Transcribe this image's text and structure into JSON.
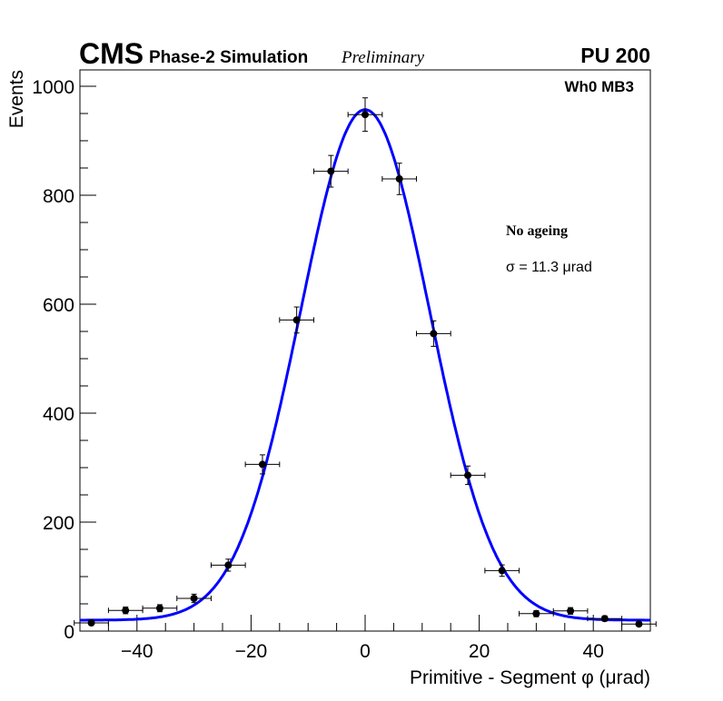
{
  "header": {
    "experiment": "CMS",
    "subtitle": "Phase-2 Simulation",
    "status": "Preliminary",
    "pileup": "PU 200"
  },
  "chart_data": {
    "type": "scatter",
    "title": "Wh0 MB3",
    "xlabel": "Primitive - Segment φ (μrad)",
    "ylabel": "Events",
    "xlim": [
      -50,
      50
    ],
    "ylim": [
      0,
      1030
    ],
    "xticks": [
      -40,
      -20,
      0,
      20,
      40
    ],
    "xtick_labels": [
      "−40",
      "−20",
      "0",
      "20",
      "40"
    ],
    "yticks": [
      0,
      200,
      400,
      600,
      800,
      1000
    ],
    "ytick_labels": [
      "0",
      "200",
      "400",
      "600",
      "800",
      "1000"
    ],
    "grid": false,
    "bin_half_width": 3,
    "points": {
      "x": [
        -48,
        -42,
        -36,
        -30,
        -24,
        -18,
        -12,
        -6,
        0,
        6,
        12,
        18,
        24,
        30,
        36,
        42,
        48
      ],
      "y": [
        15,
        38,
        42,
        60,
        121,
        306,
        571,
        844,
        948,
        830,
        546,
        286,
        111,
        32,
        37,
        23,
        13
      ]
    },
    "fit": {
      "type": "gaussian+constant",
      "color": "#0000ff",
      "amplitude": 937,
      "mean": 0,
      "sigma": 11.3,
      "constant": 20
    },
    "annotations": {
      "condition": "No ageing",
      "sigma_label": "σ = 11.3  μrad"
    }
  }
}
